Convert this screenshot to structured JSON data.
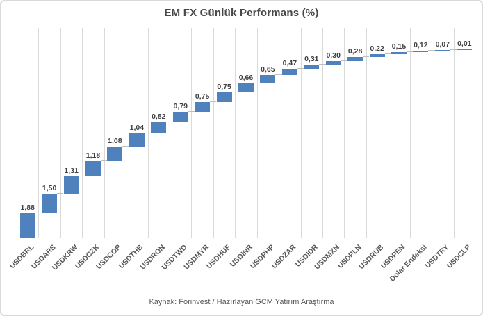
{
  "chart_data": {
    "type": "bar",
    "subtype": "waterfall-cumulative",
    "title": "EM FX Günlük Performans (%)",
    "categories": [
      "USDBRL",
      "USDARS",
      "USDKRW",
      "USDCZK",
      "USDCOP",
      "USDTHB",
      "USDRON",
      "USDTWD",
      "USDMYR",
      "USDHUF",
      "USDINR",
      "USDPHP",
      "USDZAR",
      "USDIDR",
      "USDMXN",
      "USDPLN",
      "USDRUB",
      "USDPEN",
      "Dolar Endeksi",
      "USDTRY",
      "USDCLP"
    ],
    "values": [
      1.88,
      1.5,
      1.31,
      1.18,
      1.08,
      1.04,
      0.82,
      0.79,
      0.75,
      0.75,
      0.66,
      0.65,
      0.47,
      0.31,
      0.3,
      0.28,
      0.22,
      0.15,
      0.12,
      0.07,
      0.01
    ],
    "value_labels": [
      "1,88",
      "1,50",
      "1,31",
      "1,18",
      "1,08",
      "1,04",
      "0,82",
      "0,79",
      "0,75",
      "0,75",
      "0,66",
      "0,65",
      "0,47",
      "0,31",
      "0,30",
      "0,28",
      "0,22",
      "0,15",
      "0,12",
      "0,07",
      "0,01"
    ],
    "xlabel": "",
    "ylabel": "",
    "ylim": [
      0,
      16
    ],
    "grid": "vertical-only",
    "legend": "none",
    "bar_color": "#4f81bd",
    "gridline_color": "#d9d9d9",
    "connector_color": "#bfbfbf",
    "value_label_color": "#3f3f3f",
    "category_label_color": "#595959",
    "title_color": "#484848",
    "source_note": "Kaynak: Forinvest / Hazırlayan GCM Yatırım Araştırma"
  }
}
